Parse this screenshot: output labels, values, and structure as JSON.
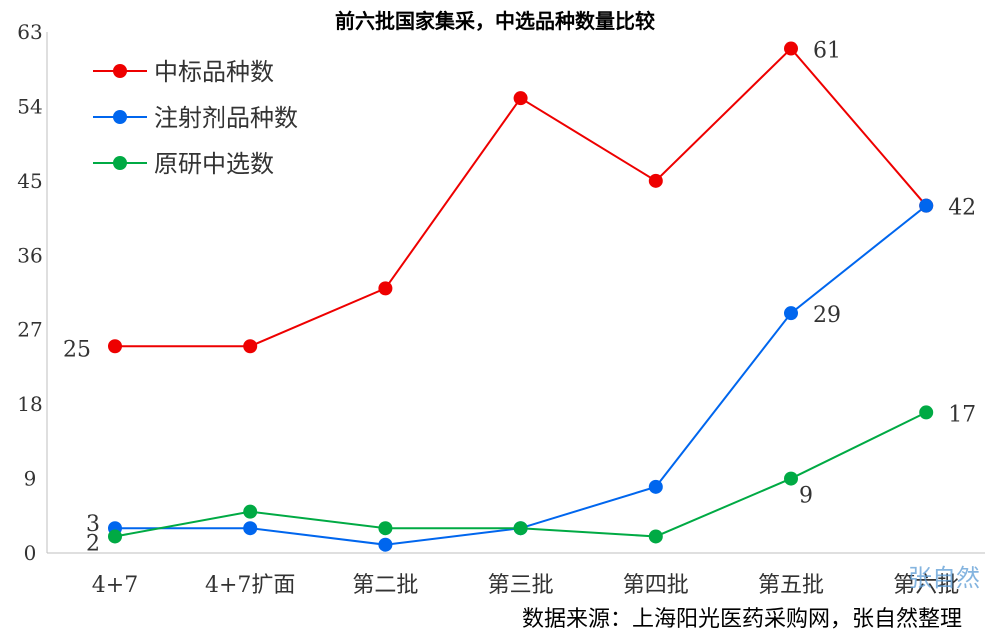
{
  "chart_data": {
    "type": "line",
    "title": "前六批国家集采，中选品种数量比较",
    "categories": [
      "4+7",
      "4+7扩面",
      "第二批",
      "第三批",
      "第四批",
      "第五批",
      "第六批"
    ],
    "ylim": [
      0,
      63
    ],
    "yticks": [
      "0",
      "9",
      "18",
      "27",
      "36",
      "45",
      "54",
      "63"
    ],
    "grid": false,
    "legend_position": "top-left",
    "series": [
      {
        "name": "中标品种数",
        "color": "#ee0000",
        "values": [
          25,
          25,
          32,
          55,
          45,
          61,
          42
        ],
        "labels": [
          "25",
          "",
          "",
          "",
          "",
          "61",
          ""
        ]
      },
      {
        "name": "注射剂品种数",
        "color": "#0066ee",
        "values": [
          3,
          3,
          1,
          3,
          8,
          29,
          42
        ],
        "labels": [
          "3",
          "",
          "",
          "",
          "",
          "29",
          "42"
        ]
      },
      {
        "name": "原研中选数",
        "color": "#00aa44",
        "values": [
          2,
          5,
          3,
          3,
          2,
          9,
          17
        ],
        "labels": [
          "2",
          "",
          "",
          "",
          "",
          "9",
          "17"
        ]
      }
    ]
  },
  "source_note": "数据来源：上海阳光医药采购网，张自然整理",
  "watermark": "张自然"
}
